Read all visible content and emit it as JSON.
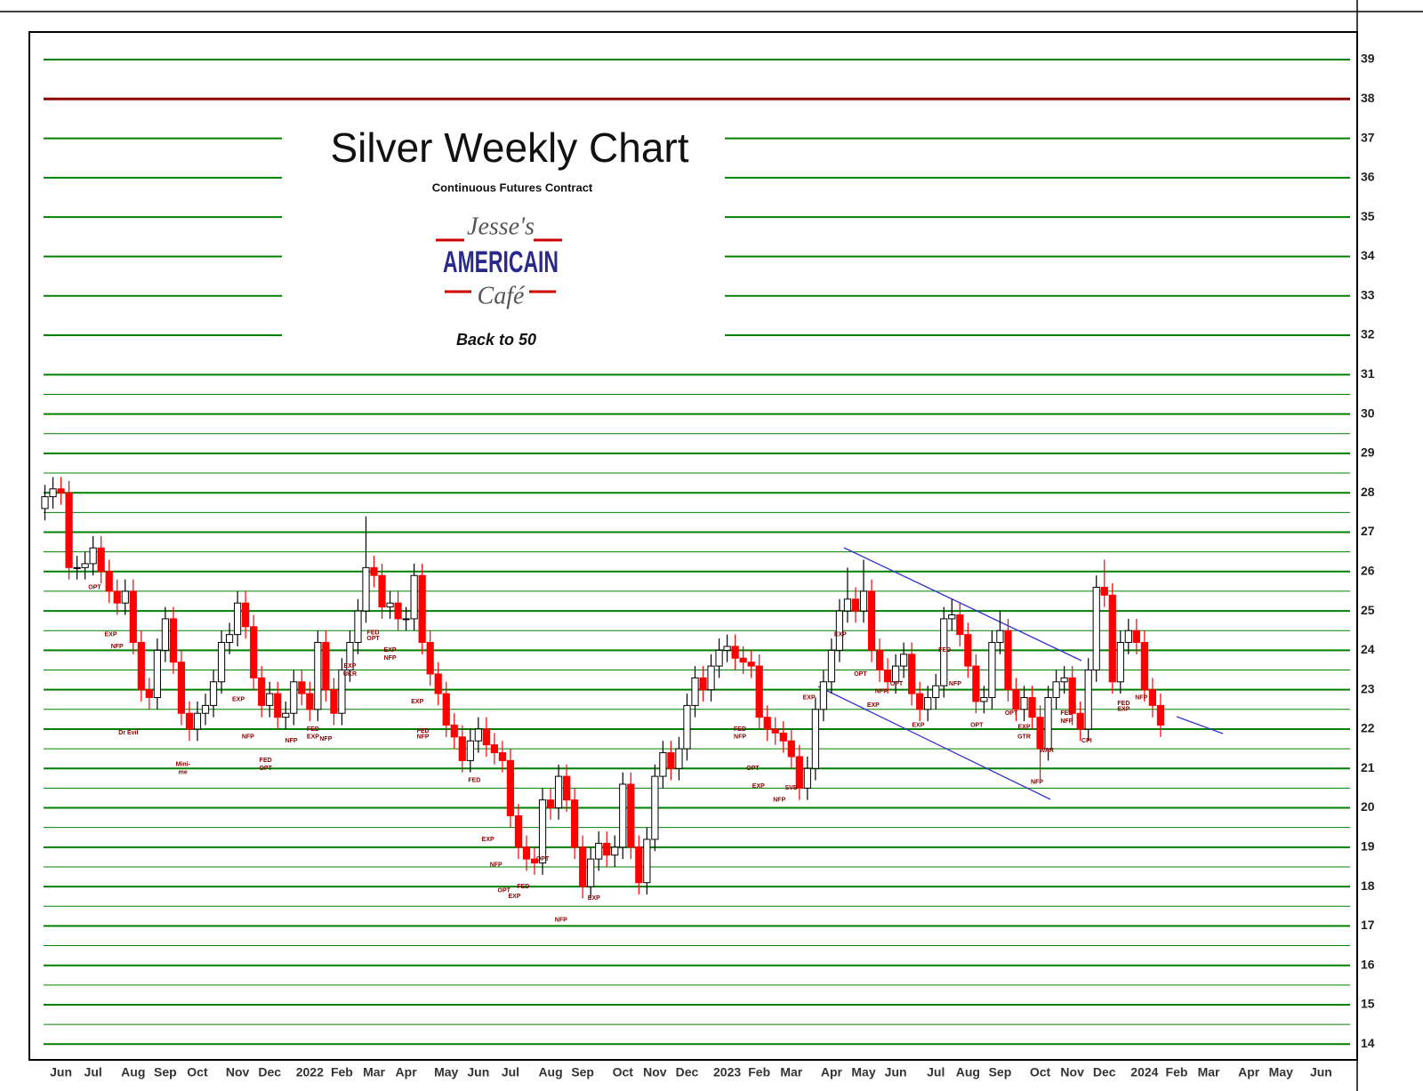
{
  "chart_data": {
    "type": "candlestick",
    "title": "Silver Weekly Chart",
    "subtitle": "Continuous Futures Contract",
    "logo": [
      "Jesse's",
      "AMERICAIN",
      "Café"
    ],
    "tagline": "Back to 50",
    "categories": [
      null,
      null,
      "Jun",
      null,
      null,
      null,
      "Jul",
      null,
      null,
      null,
      null,
      "Aug",
      null,
      null,
      null,
      "Sep",
      null,
      null,
      null,
      "Oct",
      null,
      null,
      null,
      null,
      "Nov",
      null,
      null,
      null,
      "Dec",
      null,
      null,
      null,
      null,
      "2022",
      null,
      null,
      null,
      "Feb",
      null,
      null,
      null,
      "Mar",
      null,
      null,
      null,
      "Apr",
      null,
      null,
      null,
      null,
      "May",
      null,
      null,
      null,
      "Jun",
      null,
      null,
      null,
      "Jul",
      null,
      null,
      null,
      null,
      "Aug",
      null,
      null,
      null,
      "Sep",
      null,
      null,
      null,
      null,
      "Oct",
      null,
      null,
      null,
      "Nov",
      null,
      null,
      null,
      "Dec",
      null,
      null,
      null,
      null,
      "2023",
      null,
      null,
      null,
      "Feb",
      null,
      null,
      null,
      "Mar",
      null,
      null,
      null,
      null,
      "Apr",
      null,
      null,
      null,
      "May",
      null,
      null,
      null,
      "Jun",
      null,
      null,
      null,
      null,
      "Jul",
      null,
      null,
      null,
      "Aug",
      null,
      null,
      null,
      "Sep",
      null,
      null,
      null,
      null,
      "Oct",
      null,
      null,
      null,
      "Nov",
      null,
      null,
      null,
      "Dec",
      null,
      null,
      null,
      null,
      "2024",
      null,
      null,
      null,
      "Feb",
      null,
      null,
      null,
      "Mar",
      null,
      null,
      null,
      null,
      "Apr",
      null,
      null,
      null,
      "May",
      null,
      null,
      null,
      null,
      "Jun",
      null,
      null,
      null
    ],
    "open": [
      27.6,
      27.9,
      28.1,
      28.0,
      26.1,
      26.1,
      26.2,
      26.6,
      26.0,
      25.5,
      25.2,
      25.5,
      24.2,
      23.0,
      22.8,
      24.0,
      24.8,
      23.7,
      22.4,
      22.0,
      22.4,
      22.6,
      23.2,
      24.2,
      24.4,
      25.2,
      24.6,
      23.3,
      22.6,
      22.9,
      22.3,
      22.4,
      23.2,
      22.9,
      22.5,
      24.2,
      23.0,
      22.4,
      23.5,
      24.2,
      25.0,
      26.1,
      25.9,
      25.1,
      25.2,
      24.8,
      24.8,
      25.9,
      24.2,
      23.4,
      22.9,
      22.1,
      21.8,
      21.2,
      21.7,
      22.0,
      21.6,
      21.4,
      21.2,
      19.8,
      19.0,
      18.7,
      18.6,
      20.2,
      20.0,
      20.8,
      20.2,
      19.0,
      18.0,
      18.7,
      19.1,
      18.8,
      19.0,
      20.6,
      19.0,
      18.1,
      19.2,
      20.8,
      21.4,
      21.0,
      21.5,
      22.6,
      23.3,
      23.0,
      23.6,
      24.0,
      24.1,
      23.8,
      23.7,
      23.6,
      22.3,
      22.0,
      21.9,
      21.7,
      21.3,
      20.5,
      21.0,
      22.5,
      23.2,
      24.0,
      25.0,
      25.3,
      25.0,
      25.5,
      24.0,
      23.5,
      23.2,
      23.6,
      23.9,
      22.9,
      22.5,
      22.8,
      23.1,
      24.8,
      24.9,
      24.4,
      23.6,
      22.7,
      22.8,
      24.2,
      24.5,
      23.0,
      22.5,
      22.8,
      22.3,
      21.5,
      22.8,
      23.2,
      23.3,
      22.4,
      22.0,
      23.5,
      25.6,
      25.4,
      23.2,
      24.2,
      24.5,
      24.2,
      23.0,
      22.6,
      null,
      null,
      null,
      null,
      null,
      null,
      null,
      null,
      null,
      null,
      null,
      null,
      null,
      null,
      null,
      null,
      null,
      null,
      null,
      null,
      null,
      null,
      null
    ],
    "high": [
      28.2,
      28.4,
      28.4,
      28.3,
      26.4,
      26.5,
      26.9,
      26.9,
      26.3,
      25.8,
      25.8,
      25.8,
      24.5,
      23.3,
      24.3,
      25.1,
      25.1,
      24.0,
      22.7,
      22.7,
      22.9,
      23.5,
      24.5,
      24.7,
      25.5,
      25.5,
      24.9,
      23.6,
      23.2,
      23.2,
      22.7,
      23.5,
      23.5,
      23.2,
      24.5,
      24.5,
      23.3,
      23.8,
      24.5,
      25.3,
      27.4,
      26.4,
      26.2,
      25.5,
      25.5,
      25.1,
      26.2,
      26.2,
      24.5,
      23.7,
      23.2,
      22.4,
      22.1,
      22.0,
      22.3,
      22.3,
      21.9,
      21.7,
      21.5,
      20.1,
      19.3,
      19.0,
      20.5,
      20.5,
      21.1,
      21.1,
      20.5,
      19.3,
      19.0,
      19.4,
      19.4,
      19.3,
      20.9,
      20.9,
      19.3,
      19.5,
      21.1,
      21.7,
      21.7,
      21.8,
      22.9,
      23.6,
      23.6,
      23.9,
      24.3,
      24.4,
      24.4,
      24.1,
      24.0,
      23.9,
      22.6,
      22.3,
      22.2,
      22.0,
      21.6,
      21.3,
      22.8,
      23.5,
      24.3,
      25.3,
      26.1,
      25.6,
      26.3,
      25.8,
      24.3,
      23.8,
      23.9,
      24.2,
      24.2,
      23.2,
      23.1,
      23.4,
      25.1,
      25.3,
      25.2,
      24.7,
      23.9,
      23.1,
      24.5,
      25.0,
      24.8,
      23.3,
      23.1,
      23.1,
      22.6,
      23.1,
      23.5,
      23.6,
      23.6,
      22.7,
      23.8,
      25.9,
      26.3,
      25.7,
      24.5,
      24.8,
      24.8,
      24.5,
      23.3,
      22.9,
      null,
      null,
      null,
      null,
      null,
      null,
      null,
      null,
      null,
      null,
      null,
      null,
      null,
      null,
      null,
      null,
      null,
      null,
      null,
      null,
      null,
      null,
      null
    ],
    "low": [
      27.3,
      27.6,
      27.7,
      25.8,
      25.8,
      25.8,
      25.9,
      25.7,
      25.2,
      24.9,
      24.9,
      23.9,
      22.7,
      22.5,
      22.5,
      23.7,
      23.4,
      22.1,
      21.7,
      21.7,
      22.1,
      22.3,
      22.9,
      23.9,
      24.1,
      24.3,
      23.0,
      22.3,
      22.3,
      22.0,
      22.0,
      22.1,
      22.6,
      22.2,
      22.2,
      22.7,
      22.1,
      22.1,
      23.2,
      23.9,
      24.7,
      25.6,
      24.8,
      24.8,
      24.5,
      24.5,
      24.5,
      23.9,
      23.1,
      22.6,
      21.8,
      21.5,
      20.9,
      20.9,
      21.4,
      21.3,
      21.1,
      20.9,
      19.5,
      18.7,
      18.4,
      18.3,
      18.3,
      19.7,
      19.7,
      19.9,
      18.7,
      17.7,
      17.7,
      18.4,
      18.5,
      18.5,
      18.7,
      18.7,
      17.8,
      17.8,
      18.9,
      20.5,
      20.7,
      20.7,
      21.2,
      22.3,
      22.7,
      22.7,
      23.3,
      23.7,
      23.5,
      23.4,
      23.3,
      22.0,
      21.7,
      21.6,
      21.4,
      21.0,
      20.2,
      20.2,
      20.7,
      22.2,
      22.9,
      23.7,
      24.7,
      24.7,
      24.7,
      23.7,
      23.2,
      22.9,
      22.9,
      23.3,
      22.6,
      22.2,
      22.2,
      22.5,
      22.8,
      24.5,
      24.1,
      23.3,
      22.4,
      22.4,
      22.5,
      23.9,
      22.7,
      22.2,
      22.2,
      22.0,
      20.7,
      21.2,
      22.5,
      22.9,
      22.1,
      21.7,
      21.7,
      23.2,
      25.1,
      22.9,
      22.9,
      23.9,
      23.9,
      22.7,
      22.3,
      21.8,
      null,
      null,
      null,
      null,
      null,
      null,
      null,
      null,
      null,
      null,
      null,
      null,
      null,
      null,
      null,
      null,
      null,
      null,
      null,
      null,
      null,
      null,
      null
    ],
    "close": [
      27.9,
      28.1,
      28.0,
      26.1,
      26.1,
      26.2,
      26.6,
      26.0,
      25.5,
      25.2,
      25.5,
      24.2,
      23.0,
      22.8,
      24.0,
      24.8,
      23.7,
      22.4,
      22.0,
      22.4,
      22.6,
      23.2,
      24.2,
      24.4,
      25.2,
      24.6,
      23.3,
      22.6,
      22.9,
      22.3,
      22.4,
      23.2,
      22.9,
      22.5,
      24.2,
      23.0,
      22.4,
      23.5,
      24.2,
      25.0,
      26.1,
      25.9,
      25.1,
      25.2,
      24.8,
      24.8,
      25.9,
      24.2,
      23.4,
      22.9,
      22.1,
      21.8,
      21.2,
      21.7,
      22.0,
      21.6,
      21.4,
      21.2,
      19.8,
      19.0,
      18.7,
      18.6,
      20.2,
      20.0,
      20.8,
      20.2,
      19.0,
      18.0,
      18.7,
      19.1,
      18.8,
      19.0,
      20.6,
      19.0,
      18.1,
      19.2,
      20.8,
      21.4,
      21.0,
      21.5,
      22.6,
      23.3,
      23.0,
      23.6,
      24.0,
      24.1,
      23.8,
      23.7,
      23.6,
      22.3,
      22.0,
      21.9,
      21.7,
      21.3,
      20.5,
      21.0,
      22.5,
      23.2,
      24.0,
      25.0,
      25.3,
      25.0,
      25.5,
      24.0,
      23.5,
      23.2,
      23.6,
      23.9,
      22.9,
      22.5,
      22.8,
      23.1,
      24.8,
      24.9,
      24.4,
      23.6,
      22.7,
      22.8,
      24.2,
      24.5,
      23.0,
      22.5,
      22.8,
      22.3,
      21.5,
      22.8,
      23.2,
      23.3,
      22.4,
      22.0,
      23.5,
      25.6,
      25.4,
      23.2,
      24.2,
      24.5,
      24.2,
      23.0,
      22.6,
      22.1,
      null,
      null,
      null,
      null,
      null,
      null,
      null,
      null,
      null,
      null,
      null,
      null,
      null,
      null,
      null,
      null,
      null,
      null,
      null,
      null,
      null,
      null,
      null
    ],
    "up_color": "#ffffff",
    "down_color": "#ff0000",
    "ylim": [
      13.6,
      39.7
    ],
    "yticks": [
      14,
      15,
      16,
      17,
      18,
      19,
      20,
      21,
      22,
      23,
      24,
      25,
      26,
      27,
      28,
      29,
      30,
      31,
      32,
      33,
      34,
      35,
      36,
      37,
      38,
      39
    ],
    "grid": true,
    "grid_color": "#008000",
    "minor_grid": [
      14.5,
      15.5,
      16.5,
      17.5,
      18.5,
      19.5,
      20.5,
      21.5,
      22.5,
      23.5,
      24.5,
      25.5,
      26.5,
      27.5,
      28.5,
      29.5,
      30.5
    ],
    "highlight_levels": [
      {
        "value": 38,
        "color": "#8b0000"
      }
    ],
    "annotation_color": "#8b0000",
    "annotations": [
      {
        "text": "OPT",
        "x": 6.2,
        "y": 25.6
      },
      {
        "text": "EXP",
        "x": 8.2,
        "y": 24.4
      },
      {
        "text": "NFP",
        "x": 9,
        "y": 24.1
      },
      {
        "text": "Dr Evil",
        "x": 10.4,
        "y": 21.9
      },
      {
        "text": "Mini-",
        "x": 17.2,
        "y": 21.1
      },
      {
        "text": "me",
        "x": 17.2,
        "y": 20.9
      },
      {
        "text": "EXP",
        "x": 24.1,
        "y": 22.75
      },
      {
        "text": "NFP",
        "x": 25.3,
        "y": 21.8
      },
      {
        "text": "FED",
        "x": 27.5,
        "y": 21.2
      },
      {
        "text": "OPT",
        "x": 27.5,
        "y": 21.0
      },
      {
        "text": "NFP",
        "x": 30.7,
        "y": 21.7
      },
      {
        "text": "FED",
        "x": 33.4,
        "y": 22.0
      },
      {
        "text": "EXP",
        "x": 33.4,
        "y": 21.8
      },
      {
        "text": "NFP",
        "x": 35,
        "y": 21.75
      },
      {
        "text": "EXP",
        "x": 38,
        "y": 23.6
      },
      {
        "text": "UKR",
        "x": 38,
        "y": 23.4
      },
      {
        "text": "FED",
        "x": 40.9,
        "y": 24.45
      },
      {
        "text": "OPT",
        "x": 40.9,
        "y": 24.3
      },
      {
        "text": "EXP",
        "x": 43,
        "y": 24.0
      },
      {
        "text": "NFP",
        "x": 43,
        "y": 23.8
      },
      {
        "text": "EXP",
        "x": 46.4,
        "y": 22.7
      },
      {
        "text": "FED",
        "x": 47.1,
        "y": 21.95
      },
      {
        "text": "NFP",
        "x": 47.1,
        "y": 21.8
      },
      {
        "text": "FED",
        "x": 53.5,
        "y": 20.7
      },
      {
        "text": "EXP",
        "x": 55.2,
        "y": 19.2
      },
      {
        "text": "NFP",
        "x": 56.2,
        "y": 18.55
      },
      {
        "text": "OPT",
        "x": 57.2,
        "y": 17.9
      },
      {
        "text": "EXP",
        "x": 58.5,
        "y": 17.75
      },
      {
        "text": "FED",
        "x": 59.6,
        "y": 18.0
      },
      {
        "text": "OPT",
        "x": 62,
        "y": 18.7
      },
      {
        "text": "NFP",
        "x": 64.3,
        "y": 17.15
      },
      {
        "text": "EXP",
        "x": 68.4,
        "y": 17.7
      },
      {
        "text": "FED",
        "x": 86.6,
        "y": 22.0
      },
      {
        "text": "NFP",
        "x": 86.6,
        "y": 21.8
      },
      {
        "text": "OPT",
        "x": 88.2,
        "y": 21.0
      },
      {
        "text": "EXP",
        "x": 88.9,
        "y": 20.55
      },
      {
        "text": "NFP",
        "x": 91.5,
        "y": 20.2
      },
      {
        "text": "SVB",
        "x": 93,
        "y": 20.5
      },
      {
        "text": "EXP",
        "x": 95.2,
        "y": 22.8
      },
      {
        "text": "EXP",
        "x": 99.1,
        "y": 24.4
      },
      {
        "text": "OPT",
        "x": 101.6,
        "y": 23.4
      },
      {
        "text": "EXP",
        "x": 103.2,
        "y": 22.6
      },
      {
        "text": "NFP",
        "x": 104.2,
        "y": 22.95
      },
      {
        "text": "OPT",
        "x": 106.1,
        "y": 23.15
      },
      {
        "text": "EXP",
        "x": 108.8,
        "y": 22.1
      },
      {
        "text": "FED",
        "x": 112.1,
        "y": 24.0
      },
      {
        "text": "NFP",
        "x": 113.4,
        "y": 23.15
      },
      {
        "text": "OPT",
        "x": 116.1,
        "y": 22.1
      },
      {
        "text": "OPT",
        "x": 120.4,
        "y": 22.4
      },
      {
        "text": "EXP",
        "x": 122,
        "y": 22.05
      },
      {
        "text": "GTR",
        "x": 122,
        "y": 21.8
      },
      {
        "text": "NFP",
        "x": 123.6,
        "y": 20.65
      },
      {
        "text": "WAR",
        "x": 124.8,
        "y": 21.45
      },
      {
        "text": "FED",
        "x": 127.3,
        "y": 22.4
      },
      {
        "text": "NFP",
        "x": 127.3,
        "y": 22.2
      },
      {
        "text": "CPI",
        "x": 129.8,
        "y": 21.7
      },
      {
        "text": "FED",
        "x": 134.4,
        "y": 22.65
      },
      {
        "text": "EXP",
        "x": 134.4,
        "y": 22.5
      },
      {
        "text": "NFP",
        "x": 136.6,
        "y": 22.8
      }
    ]
  }
}
